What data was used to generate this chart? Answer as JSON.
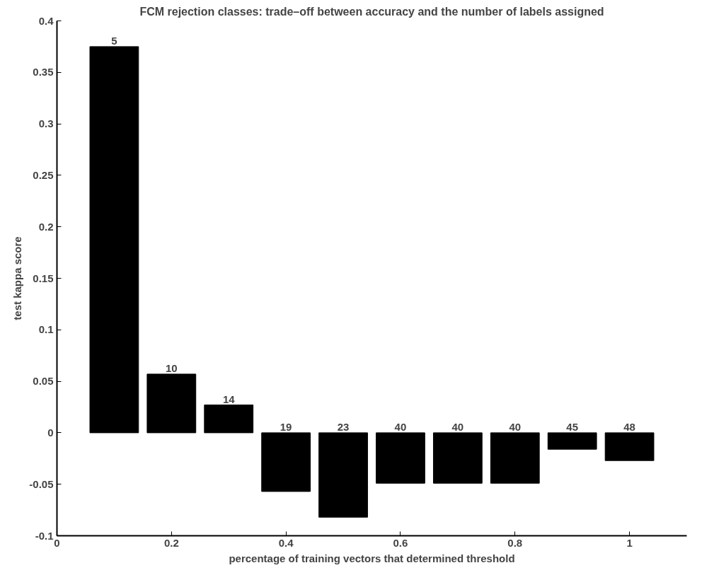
{
  "chart_data": {
    "type": "bar",
    "title": "FCM rejection classes: trade–off between accuracy and the number of labels assigned",
    "xlabel": "percentage of training vectors that determined threshold",
    "ylabel": "test kappa score",
    "x": [
      0.1,
      0.2,
      0.3,
      0.4,
      0.5,
      0.6,
      0.7,
      0.8,
      0.9,
      1.0
    ],
    "values": [
      0.375,
      0.057,
      0.027,
      -0.057,
      -0.082,
      -0.049,
      -0.049,
      -0.049,
      -0.016,
      -0.027
    ],
    "annotations": [
      {
        "text": "5",
        "x": 0.1,
        "y": 0.375
      },
      {
        "text": "10",
        "x": 0.2,
        "y": 0.057
      },
      {
        "text": "14",
        "x": 0.3,
        "y": 0.027
      },
      {
        "text": "19",
        "x": 0.4,
        "y": 0
      },
      {
        "text": "23",
        "x": 0.5,
        "y": 0
      },
      {
        "text": "40",
        "x": 0.6,
        "y": 0
      },
      {
        "text": "40",
        "x": 0.7,
        "y": 0
      },
      {
        "text": "40",
        "x": 0.8,
        "y": 0
      },
      {
        "text": "45",
        "x": 0.9,
        "y": 0
      },
      {
        "text": "48",
        "x": 1.0,
        "y": 0
      }
    ],
    "color": "#000000",
    "xlim": [
      0,
      1.1
    ],
    "xticks": [
      0,
      0.2,
      0.4,
      0.6,
      0.8,
      1
    ],
    "ylim": [
      -0.1,
      0.4
    ],
    "yticks": [
      -0.1,
      -0.05,
      0,
      0.05,
      0.1,
      0.15,
      0.2,
      0.25,
      0.3,
      0.35,
      0.4
    ],
    "grid": false
  }
}
